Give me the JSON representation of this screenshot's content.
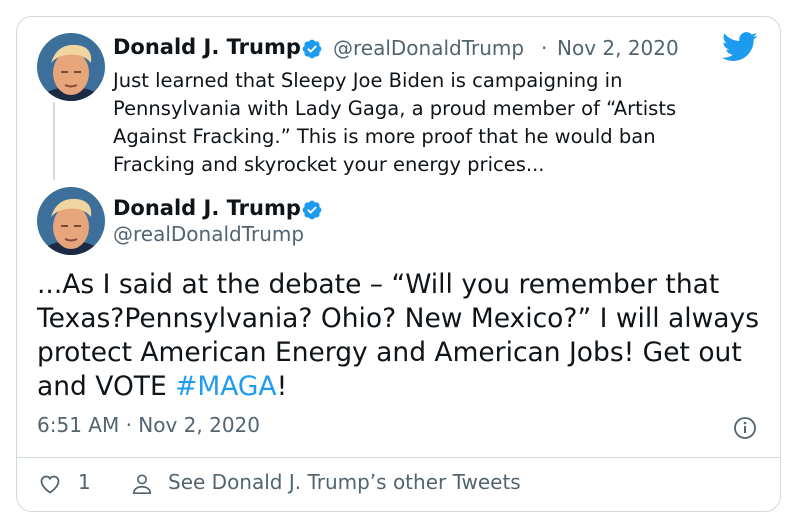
{
  "reply_tweet": {
    "display_name": "Donald J. Trump",
    "handle": "@realDonaldTrump",
    "separator": "·",
    "date": "Nov 2, 2020",
    "text": "Just learned that Sleepy Joe Biden is campaigning in Pennsylvania with Lady Gaga, a proud member of “Artists Against Fracking.” This is more proof that he would ban Fracking and skyrocket your energy prices..."
  },
  "main_tweet": {
    "display_name": "Donald J. Trump",
    "handle": "@realDonaldTrump",
    "text_before_hashtag": "...As I said at the debate – “Will you remember that Texas?Pennsylvania? Ohio? New Mexico?” I will always protect American Energy and American Jobs! Get out and VOTE ",
    "hashtag": "#MAGA",
    "text_after_hashtag": "!",
    "timestamp": "6:51 AM · Nov 2, 2020"
  },
  "footer": {
    "like_count": "1",
    "profile_link": "See Donald J. Trump’s other Tweets"
  },
  "icons": {
    "brand": "twitter-bird-icon",
    "verified": "verified-badge-icon",
    "info": "info-icon",
    "like": "heart-icon",
    "profile": "person-icon"
  },
  "colors": {
    "accent": "#1d9bf0",
    "text": "#0f1419",
    "secondary": "#536471",
    "border": "#cfd9de"
  }
}
